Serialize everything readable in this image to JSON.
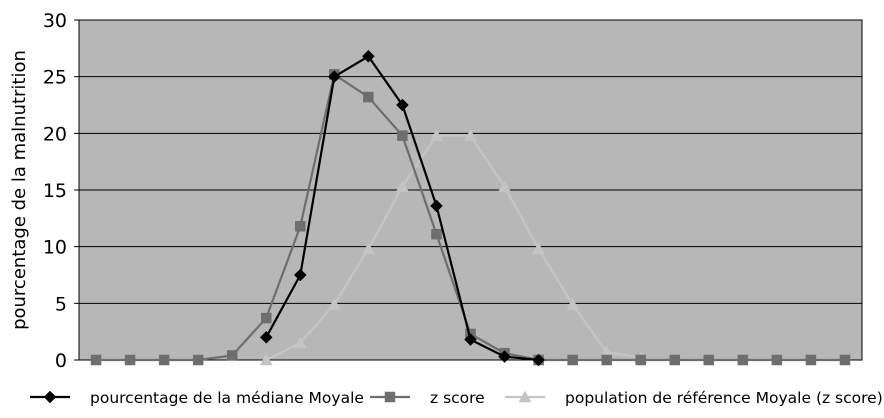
{
  "chart_data": {
    "type": "line",
    "title": "",
    "xlabel": "",
    "ylabel": "pourcentage de la malnutrition",
    "ylim": [
      0,
      30
    ],
    "yticks": [
      0,
      5,
      10,
      15,
      20,
      25,
      30
    ],
    "grid": true,
    "legend_position": "bottom",
    "x": [
      1,
      2,
      3,
      4,
      5,
      6,
      7,
      8,
      9,
      10,
      11,
      12,
      13,
      14,
      15,
      16,
      17,
      18,
      19,
      20,
      21,
      22,
      23
    ],
    "series": [
      {
        "name": "pourcentage de la médiane Moyale",
        "color": "#000000",
        "marker": "diamond",
        "values": [
          null,
          null,
          null,
          null,
          null,
          2.0,
          7.5,
          25.0,
          26.8,
          22.5,
          13.6,
          1.8,
          0.3,
          0.0,
          null,
          null,
          null,
          null,
          null,
          null,
          null,
          null,
          null
        ]
      },
      {
        "name": "z score",
        "color": "#6e6e6e",
        "marker": "square",
        "values": [
          0,
          0,
          0,
          0,
          0.4,
          3.7,
          11.8,
          25.2,
          23.2,
          19.8,
          11.1,
          2.3,
          0.6,
          0,
          0,
          0,
          0,
          0,
          0,
          0,
          0,
          0,
          0
        ]
      },
      {
        "name": "population de référence Moyale (z score)",
        "color": "#c4c4c4",
        "marker": "triangle",
        "values": [
          null,
          null,
          null,
          null,
          null,
          0,
          1.5,
          4.9,
          9.8,
          15.3,
          19.8,
          19.8,
          15.3,
          9.8,
          4.9,
          0.7,
          0.2,
          null,
          null,
          null,
          null,
          null,
          null
        ]
      }
    ]
  },
  "colors": {
    "plot_background": "#b7b7b7",
    "gridline": "#000000"
  }
}
